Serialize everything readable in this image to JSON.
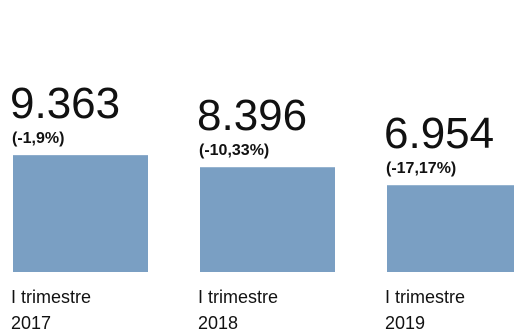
{
  "chart_data": {
    "type": "bar",
    "categories": [
      [
        "I trimestre",
        "2017"
      ],
      [
        "I trimestre",
        "2018"
      ],
      [
        "I trimestre",
        "2019"
      ]
    ],
    "values": [
      9363,
      8396,
      6954
    ],
    "value_labels": [
      "9.363",
      "8.396",
      "6.954"
    ],
    "change_labels": [
      "(-1,9%)",
      "(-10,33%)",
      "(-17,17%)"
    ],
    "title": "",
    "xlabel": "",
    "ylabel": "",
    "ylim": [
      0,
      10000
    ],
    "grid": false,
    "legend": "none"
  },
  "colors": {
    "bar": "#7a9fc3",
    "text": "#111111",
    "background": "#ffffff"
  }
}
